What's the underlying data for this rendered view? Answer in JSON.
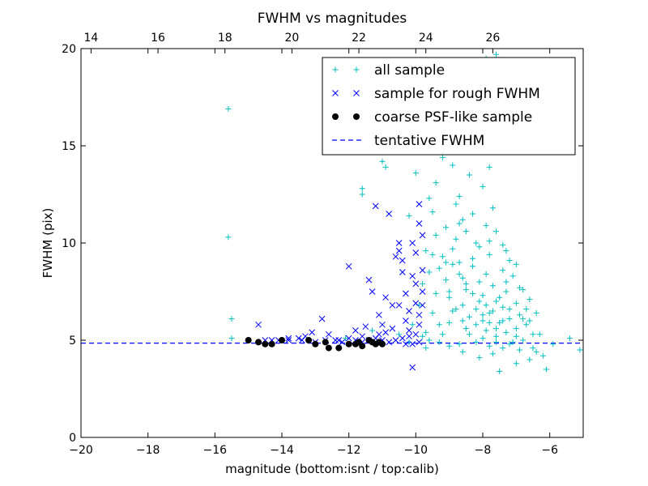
{
  "chart_data": {
    "type": "scatter",
    "title": "FWHM vs magnitudes",
    "xlabel": "magnitude (bottom:isnt / top:calib)",
    "ylabel": "FWHM (pix)",
    "xlim": [
      -20,
      -5
    ],
    "ylim": [
      0,
      20
    ],
    "x_ticks": [
      -20,
      -18,
      -16,
      -14,
      -12,
      -10,
      -8,
      -6
    ],
    "x_tick_labels": [
      "−20",
      "−18",
      "−16",
      "−14",
      "−12",
      "−10",
      "−8",
      "−6"
    ],
    "y_ticks": [
      0,
      5,
      10,
      15,
      20
    ],
    "y_tick_labels": [
      "0",
      "5",
      "10",
      "15",
      "20"
    ],
    "top_axis": {
      "offset": 33.7,
      "ticks": [
        14,
        16,
        18,
        20,
        22,
        24,
        26
      ],
      "tick_labels": [
        "14",
        "16",
        "18",
        "20",
        "22",
        "24",
        "26"
      ]
    },
    "grid": false,
    "legend_position": "top-right",
    "colors": {
      "all_sample": "#00bfbf",
      "rough": "#0000ff",
      "coarse": "#000000",
      "fwhm_line": "#0000ff"
    },
    "series": [
      {
        "name": "all sample",
        "marker": "plus",
        "points": [
          [
            -15.6,
            16.9
          ],
          [
            -15.6,
            10.3
          ],
          [
            -15.5,
            6.1
          ],
          [
            -15.5,
            5.1
          ],
          [
            -9.6,
            8.5
          ],
          [
            -9.4,
            7.4
          ],
          [
            -9.5,
            6.4
          ],
          [
            -9.3,
            5.8
          ],
          [
            -9.7,
            5.4
          ],
          [
            -9.6,
            5.0
          ],
          [
            -9.2,
            9.3
          ],
          [
            -9.1,
            8.1
          ],
          [
            -9.0,
            7.2
          ],
          [
            -8.9,
            6.5
          ],
          [
            -9.0,
            5.9
          ],
          [
            -9.2,
            5.3
          ],
          [
            -8.8,
            10.2
          ],
          [
            -8.7,
            9.0
          ],
          [
            -8.6,
            8.2
          ],
          [
            -8.5,
            7.6
          ],
          [
            -8.6,
            6.8
          ],
          [
            -8.4,
            6.2
          ],
          [
            -8.5,
            5.6
          ],
          [
            -8.3,
            11.5
          ],
          [
            -8.2,
            10.0
          ],
          [
            -8.3,
            8.8
          ],
          [
            -8.1,
            8.0
          ],
          [
            -8.0,
            7.3
          ],
          [
            -8.2,
            6.6
          ],
          [
            -8.0,
            6.0
          ],
          [
            -7.9,
            5.5
          ],
          [
            -7.8,
            9.4
          ],
          [
            -7.9,
            8.4
          ],
          [
            -7.7,
            7.8
          ],
          [
            -7.6,
            7.0
          ],
          [
            -7.8,
            6.4
          ],
          [
            -7.5,
            5.9
          ],
          [
            -7.6,
            5.2
          ],
          [
            -7.4,
            8.6
          ],
          [
            -7.3,
            7.5
          ],
          [
            -7.4,
            6.7
          ],
          [
            -7.2,
            6.1
          ],
          [
            -7.3,
            5.4
          ],
          [
            -7.1,
            4.9
          ],
          [
            -7.0,
            6.9
          ],
          [
            -6.9,
            6.3
          ],
          [
            -7.0,
            5.6
          ],
          [
            -6.8,
            5.0
          ],
          [
            -6.9,
            4.5
          ],
          [
            -6.7,
            5.8
          ],
          [
            -8.4,
            13.5
          ],
          [
            -8.1,
            14.7
          ],
          [
            -8.7,
            12.4
          ],
          [
            -8.0,
            12.9
          ],
          [
            -7.9,
            10.9
          ],
          [
            -8.6,
            11.2
          ],
          [
            -8.8,
            12.0
          ],
          [
            -9.4,
            13.1
          ],
          [
            -9.0,
            15.2
          ],
          [
            -8.5,
            15.8
          ],
          [
            -9.2,
            14.4
          ],
          [
            -8.3,
            16.3
          ],
          [
            -7.8,
            13.9
          ],
          [
            -8.9,
            14.0
          ],
          [
            -9.5,
            11.6
          ],
          [
            -9.6,
            12.3
          ],
          [
            -10.0,
            13.6
          ],
          [
            -10.2,
            11.4
          ],
          [
            -10.9,
            13.9
          ],
          [
            -11.0,
            14.2
          ],
          [
            -11.6,
            12.8
          ],
          [
            -11.6,
            12.5
          ],
          [
            -7.7,
            11.8
          ],
          [
            -7.6,
            10.6
          ],
          [
            -7.4,
            9.9
          ],
          [
            -7.2,
            9.1
          ],
          [
            -7.1,
            8.3
          ],
          [
            -6.9,
            7.7
          ],
          [
            -6.7,
            6.6
          ],
          [
            -6.6,
            6.0
          ],
          [
            -6.5,
            5.3
          ],
          [
            -6.5,
            4.6
          ],
          [
            -6.6,
            4.0
          ],
          [
            -6.4,
            4.4
          ],
          [
            -5.9,
            4.8
          ],
          [
            -5.4,
            5.1
          ],
          [
            -5.1,
            4.5
          ],
          [
            -6.2,
            4.2
          ],
          [
            -7.5,
            3.4
          ],
          [
            -6.1,
            3.5
          ],
          [
            -7.0,
            3.8
          ],
          [
            -8.1,
            4.1
          ],
          [
            -8.6,
            4.4
          ],
          [
            -9.0,
            4.7
          ],
          [
            -9.3,
            4.9
          ],
          [
            -9.8,
            5.2
          ],
          [
            -8.7,
            4.8
          ],
          [
            -7.7,
            4.3
          ],
          [
            -9.7,
            4.6
          ],
          [
            -10.1,
            5.8
          ],
          [
            -9.9,
            6.8
          ],
          [
            -9.8,
            7.9
          ],
          [
            -9.7,
            9.6
          ],
          [
            -9.4,
            10.4
          ],
          [
            -9.1,
            10.8
          ],
          [
            -7.6,
            19.7
          ],
          [
            -7.9,
            19.5
          ],
          [
            -8.2,
            19.0
          ],
          [
            -8.0,
            18.4
          ],
          [
            -8.5,
            17.2
          ],
          [
            -7.7,
            17.8
          ],
          [
            -8.4,
            18.8
          ],
          [
            -7.3,
            8.0
          ],
          [
            -7.5,
            7.2
          ],
          [
            -7.7,
            6.5
          ],
          [
            -7.9,
            6.8
          ],
          [
            -8.1,
            7.0
          ],
          [
            -8.3,
            7.4
          ],
          [
            -8.5,
            7.9
          ],
          [
            -8.7,
            8.4
          ],
          [
            -8.9,
            8.9
          ],
          [
            -7.2,
            6.6
          ],
          [
            -7.4,
            6.0
          ],
          [
            -7.6,
            5.6
          ],
          [
            -7.8,
            5.9
          ],
          [
            -8.0,
            6.3
          ],
          [
            -8.2,
            5.8
          ],
          [
            -8.4,
            5.3
          ],
          [
            -8.6,
            6.0
          ],
          [
            -8.8,
            6.6
          ],
          [
            -9.0,
            7.5
          ],
          [
            -6.8,
            6.1
          ],
          [
            -7.0,
            5.2
          ],
          [
            -7.2,
            4.8
          ],
          [
            -7.4,
            4.6
          ],
          [
            -7.6,
            4.9
          ],
          [
            -7.8,
            4.7
          ],
          [
            -8.0,
            5.1
          ],
          [
            -8.2,
            4.9
          ],
          [
            -6.3,
            5.3
          ],
          [
            -6.4,
            6.4
          ],
          [
            -6.6,
            7.1
          ],
          [
            -6.8,
            7.6
          ],
          [
            -7.0,
            8.9
          ],
          [
            -7.3,
            9.6
          ],
          [
            -7.8,
            10.1
          ],
          [
            -8.1,
            9.8
          ],
          [
            -8.3,
            9.2
          ],
          [
            -8.5,
            10.6
          ],
          [
            -8.7,
            11.0
          ],
          [
            -8.9,
            9.7
          ],
          [
            -9.1,
            9.0
          ],
          [
            -9.3,
            8.7
          ],
          [
            -9.5,
            9.4
          ],
          [
            -12.1,
            5.1
          ],
          [
            -11.3,
            5.5
          ],
          [
            -10.5,
            5.3
          ],
          [
            -10.2,
            4.9
          ]
        ]
      },
      {
        "name": "sample for rough FWHM",
        "marker": "x",
        "points": [
          [
            -14.7,
            5.8
          ],
          [
            -14.3,
            5.0
          ],
          [
            -13.8,
            5.0
          ],
          [
            -13.5,
            5.1
          ],
          [
            -13.3,
            5.2
          ],
          [
            -13.1,
            5.4
          ],
          [
            -12.8,
            6.1
          ],
          [
            -12.6,
            5.3
          ],
          [
            -12.4,
            5.0
          ],
          [
            -12.2,
            4.9
          ],
          [
            -12.0,
            8.8
          ],
          [
            -11.8,
            5.5
          ],
          [
            -11.6,
            5.2
          ],
          [
            -11.5,
            5.7
          ],
          [
            -11.4,
            8.1
          ],
          [
            -11.3,
            7.5
          ],
          [
            -11.2,
            11.9
          ],
          [
            -11.1,
            6.3
          ],
          [
            -11.0,
            5.8
          ],
          [
            -10.9,
            7.2
          ],
          [
            -10.8,
            11.5
          ],
          [
            -10.7,
            6.8
          ],
          [
            -10.6,
            9.3
          ],
          [
            -10.5,
            10.0
          ],
          [
            -10.5,
            9.6
          ],
          [
            -10.4,
            8.5
          ],
          [
            -10.3,
            7.4
          ],
          [
            -10.3,
            6.0
          ],
          [
            -10.2,
            5.5
          ],
          [
            -10.1,
            8.3
          ],
          [
            -10.1,
            3.6
          ],
          [
            -10.0,
            9.5
          ],
          [
            -10.0,
            7.9
          ],
          [
            -9.9,
            11.0
          ],
          [
            -9.9,
            12.0
          ],
          [
            -9.8,
            10.4
          ],
          [
            -9.8,
            6.8
          ],
          [
            -9.9,
            5.8
          ],
          [
            -10.0,
            5.3
          ],
          [
            -10.2,
            5.2
          ],
          [
            -10.4,
            5.1
          ],
          [
            -10.6,
            5.0
          ],
          [
            -10.8,
            4.9
          ],
          [
            -11.0,
            5.0
          ],
          [
            -11.2,
            5.1
          ],
          [
            -11.4,
            5.0
          ],
          [
            -11.6,
            4.9
          ],
          [
            -11.8,
            5.0
          ],
          [
            -12.0,
            5.1
          ],
          [
            -12.3,
            5.0
          ],
          [
            -12.7,
            5.0
          ],
          [
            -13.0,
            4.9
          ],
          [
            -13.4,
            5.0
          ],
          [
            -13.8,
            5.1
          ],
          [
            -14.1,
            5.0
          ],
          [
            -14.5,
            5.0
          ],
          [
            -9.9,
            4.9
          ],
          [
            -10.1,
            4.8
          ],
          [
            -10.3,
            4.8
          ],
          [
            -9.8,
            7.5
          ],
          [
            -9.9,
            6.3
          ],
          [
            -10.2,
            6.5
          ],
          [
            -10.5,
            6.8
          ],
          [
            -10.7,
            5.6
          ],
          [
            -10.9,
            5.4
          ],
          [
            -11.1,
            5.3
          ],
          [
            -10.0,
            6.9
          ],
          [
            -9.8,
            8.6
          ],
          [
            -10.4,
            9.1
          ],
          [
            -10.1,
            10.0
          ]
        ]
      },
      {
        "name": "coarse PSF-like sample",
        "marker": "circle",
        "points": [
          [
            -15.0,
            5.0
          ],
          [
            -14.7,
            4.9
          ],
          [
            -14.5,
            4.8
          ],
          [
            -14.3,
            4.8
          ],
          [
            -14.0,
            5.0
          ],
          [
            -13.2,
            5.0
          ],
          [
            -13.0,
            4.8
          ],
          [
            -12.7,
            4.9
          ],
          [
            -12.6,
            4.6
          ],
          [
            -12.3,
            4.6
          ],
          [
            -12.0,
            4.8
          ],
          [
            -11.8,
            4.8
          ],
          [
            -11.7,
            4.9
          ],
          [
            -11.6,
            4.7
          ],
          [
            -11.3,
            4.9
          ],
          [
            -11.1,
            4.9
          ],
          [
            -11.0,
            4.8
          ],
          [
            -11.2,
            4.8
          ],
          [
            -11.4,
            5.0
          ]
        ]
      }
    ],
    "reference_line": {
      "name": "tentative FWHM",
      "value": 4.85,
      "style": "dashed"
    }
  }
}
